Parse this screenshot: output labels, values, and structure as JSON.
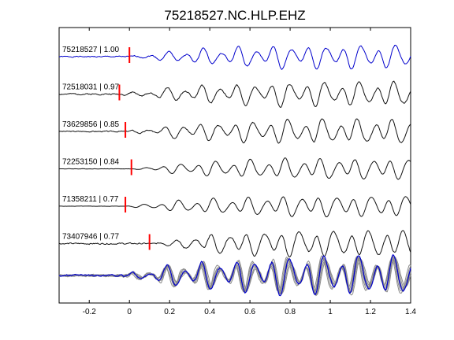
{
  "chart_data": {
    "type": "line",
    "title": "75218527.NC.HLP.EHZ",
    "xlabel": "",
    "ylabel": "",
    "xlim": [
      -0.35,
      1.4
    ],
    "xticks": [
      -0.2,
      0,
      0.2,
      0.4,
      0.6,
      0.8,
      1,
      1.2,
      1.4
    ],
    "xtick_labels": [
      "-0.2",
      "0",
      "0.2",
      "0.4",
      "0.6",
      "0.8",
      "1",
      "1.2",
      "1.4"
    ],
    "grid": false,
    "legend": "none",
    "colors": {
      "reference_trace": "#0000cc",
      "trace": "#111111",
      "pick": "#ff0000",
      "stack_trace": "#8a8a8a",
      "axis": "#000000"
    },
    "series": [
      {
        "name": "75218527 | 1.00",
        "label": "75218527 | 1.00",
        "pick_time": 0.0,
        "color": "#0000cc",
        "amplitude": 14,
        "noise": 1.5,
        "phase": 0.0,
        "seed": 1
      },
      {
        "name": "72518031 | 0.97",
        "label": "72518031 | 0.97",
        "pick_time": -0.05,
        "color": "#111111",
        "amplitude": 20,
        "noise": 2.5,
        "phase": 0.5,
        "seed": 2
      },
      {
        "name": "73629856 | 0.85",
        "label": "73629856 | 0.85",
        "pick_time": -0.02,
        "color": "#111111",
        "amplitude": 20,
        "noise": 2.0,
        "phase": 1.1,
        "seed": 3
      },
      {
        "name": "72253150 | 0.84",
        "label": "72253150 | 0.84",
        "pick_time": 0.01,
        "color": "#111111",
        "amplitude": 17,
        "noise": 0.6,
        "phase": 1.9,
        "seed": 4
      },
      {
        "name": "71358211 | 0.77",
        "label": "71358211 | 0.77",
        "pick_time": -0.02,
        "color": "#111111",
        "amplitude": 17,
        "noise": 0.4,
        "phase": 2.6,
        "seed": 5
      },
      {
        "name": "73407946 | 0.77",
        "label": "73407946 | 0.77",
        "pick_time": 0.1,
        "color": "#111111",
        "amplitude": 22,
        "noise": 2.5,
        "phase": 3.4,
        "seed": 6
      }
    ],
    "stack": {
      "type": "overlay",
      "trace_count": 6,
      "amplitude": 16
    }
  }
}
